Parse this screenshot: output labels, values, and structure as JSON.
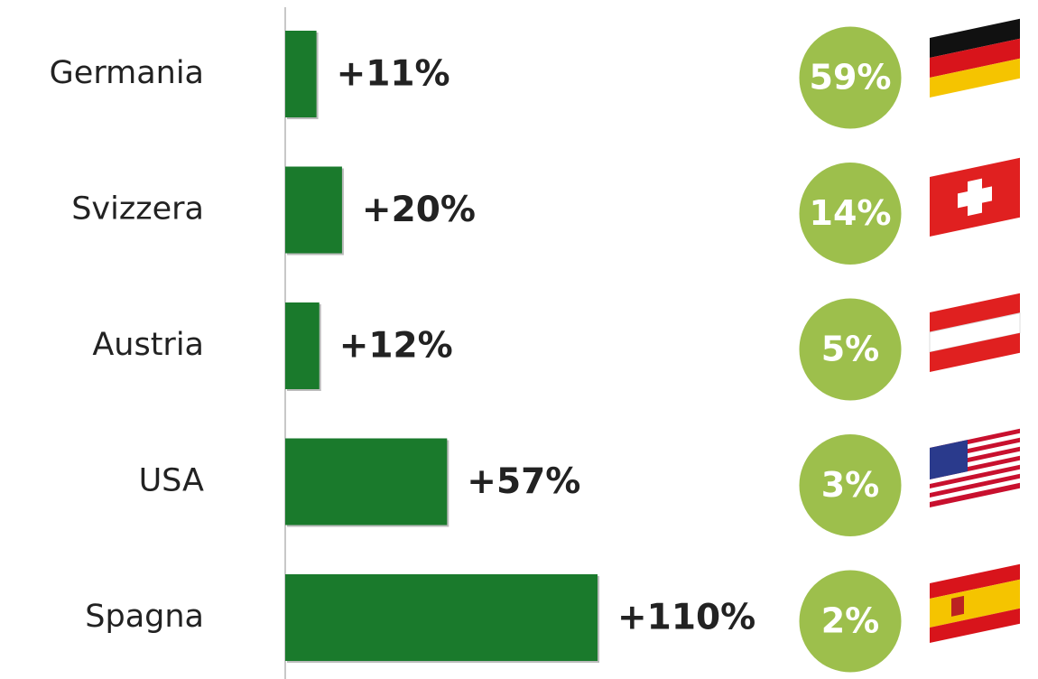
{
  "chart_data": {
    "type": "bar",
    "orientation": "horizontal",
    "categories": [
      "Germania",
      "Svizzera",
      "Austria",
      "USA",
      "Spagna"
    ],
    "values": [
      11,
      20,
      12,
      57,
      110
    ],
    "value_labels": [
      "+11%",
      "+20%",
      "+12%",
      "+57%",
      "+110%"
    ],
    "color": "#1a7a2c",
    "shares": {
      "values": [
        59,
        14,
        5,
        3,
        2
      ],
      "value_labels": [
        "59%",
        "14%",
        "5%",
        "3%",
        "2%"
      ],
      "color": "#9dbf4c"
    }
  }
}
